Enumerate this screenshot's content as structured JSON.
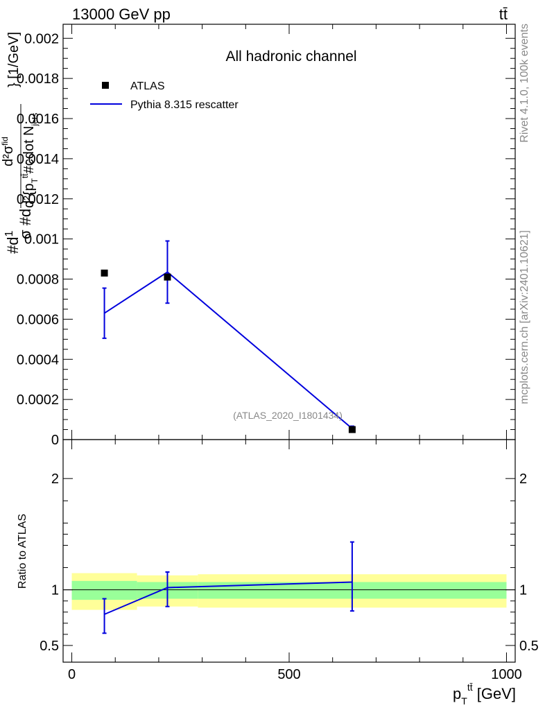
{
  "header": {
    "left": "13000 GeV pp",
    "right": "tt̄"
  },
  "side_labels": {
    "rivet": "Rivet 4.1.0,  100k events",
    "mcplots": "mcplots.cern.ch [arXiv:2401.10621]"
  },
  "chart_data": [
    {
      "type": "scatter",
      "title": "All hadronic channel",
      "analysis_tag": "(ATLAS_2020_I1801434)",
      "ylabel": "#d²σ / #d... [1/GeV]",
      "ylim": [
        0,
        0.00207
      ],
      "xlim": [
        -20,
        1020
      ],
      "yticks": [
        {
          "v": 0,
          "label": "0"
        },
        {
          "v": 0.0002,
          "label": "0.0002"
        },
        {
          "v": 0.0004,
          "label": "0.0004"
        },
        {
          "v": 0.0006,
          "label": "0.0006"
        },
        {
          "v": 0.0008,
          "label": "0.0008"
        },
        {
          "v": 0.001,
          "label": "0.001"
        },
        {
          "v": 0.0012,
          "label": "0.0012"
        },
        {
          "v": 0.0014,
          "label": "0.0014"
        },
        {
          "v": 0.0016,
          "label": "0.0016"
        },
        {
          "v": 0.0018,
          "label": "0.0018"
        },
        {
          "v": 0.002,
          "label": "0.002"
        }
      ],
      "legend": [
        {
          "name": "ATLAS",
          "kind": "marker",
          "color": "#000000"
        },
        {
          "name": "Pythia 8.315 rescatter",
          "kind": "line",
          "color": "#0000dd"
        }
      ],
      "data": {
        "name": "ATLAS",
        "x": [
          75,
          220,
          645
        ],
        "y": [
          0.00083,
          0.00081,
          5e-05
        ]
      },
      "mc": {
        "name": "Pythia 8.315 rescatter",
        "color": "#0000dd",
        "x": [
          75,
          220,
          645
        ],
        "y": [
          0.00063,
          0.000835,
          5.5e-05
        ],
        "err": [
          0.000125,
          0.000155,
          1.2e-05
        ]
      }
    },
    {
      "type": "line",
      "ylabel": "Ratio to ATLAS",
      "xlabel": "p_T^{tt̄} [GeV]",
      "xlabel_main": "p",
      "xlabel_sub": "T",
      "xlabel_sup": "tt̄",
      "xlabel_unit": " [GeV]",
      "ylim": [
        0.35,
        2.35
      ],
      "xlim": [
        -20,
        1020
      ],
      "yticks": [
        {
          "v": 0.5,
          "label": "0.5"
        },
        {
          "v": 1,
          "label": "1"
        },
        {
          "v": 2,
          "label": "2"
        }
      ],
      "xticks": [
        {
          "v": 0,
          "label": "0"
        },
        {
          "v": 500,
          "label": "500"
        },
        {
          "v": 1000,
          "label": "1000"
        }
      ],
      "bands": [
        {
          "x0": 0,
          "x1": 150,
          "inner": [
            0.91,
            1.08
          ],
          "outer": [
            0.82,
            1.15
          ]
        },
        {
          "x0": 150,
          "x1": 290,
          "inner": [
            0.92,
            1.07
          ],
          "outer": [
            0.85,
            1.13
          ]
        },
        {
          "x0": 290,
          "x1": 1000,
          "inner": [
            0.92,
            1.07
          ],
          "outer": [
            0.84,
            1.14
          ]
        }
      ],
      "mc": {
        "name": "Pythia 8.315 rescatter",
        "color": "#0000dd",
        "x": [
          75,
          220,
          645
        ],
        "y": [
          0.78,
          1.02,
          1.07
        ],
        "err_lo": [
          0.17,
          0.17,
          0.26
        ],
        "err_hi": [
          0.14,
          0.14,
          0.36
        ]
      }
    }
  ]
}
